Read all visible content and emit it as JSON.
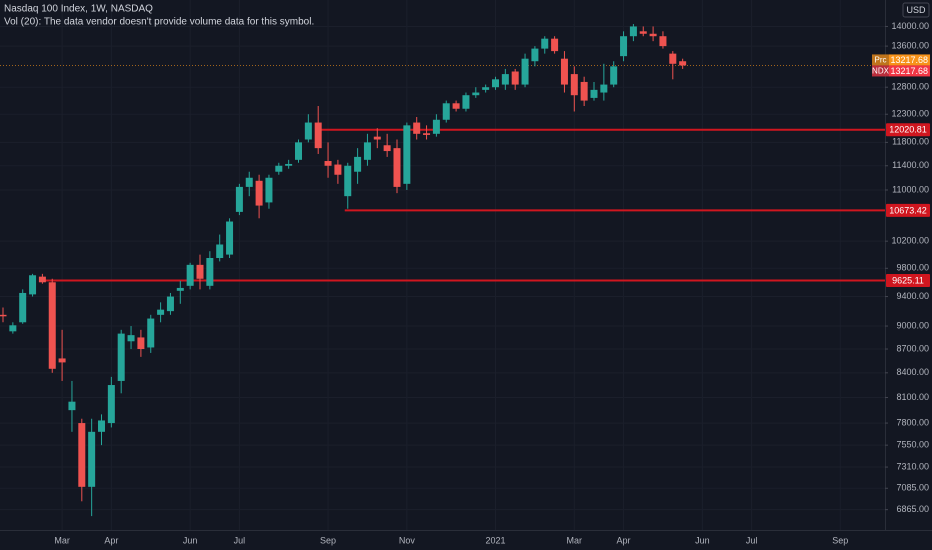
{
  "chart_data": {
    "type": "candlestick",
    "title": "Nasdaq 100 Index, 1W, NASDAQ",
    "subtitle": "Vol (20): The data vendor doesn't provide volume data for this symbol.",
    "currency": "USD",
    "log_scale": true,
    "grid": true,
    "up_color": "#26a69a",
    "down_color": "#ef5350",
    "level_color": "#d0161f",
    "categories": [
      null,
      null,
      null,
      null,
      null,
      null,
      "Mar",
      null,
      null,
      null,
      null,
      "Apr",
      null,
      null,
      null,
      null,
      null,
      null,
      null,
      "Jun",
      null,
      null,
      null,
      null,
      "Jul",
      null,
      null,
      null,
      null,
      null,
      null,
      null,
      null,
      "Sep",
      null,
      null,
      null,
      null,
      null,
      null,
      null,
      "Nov",
      null,
      null,
      null,
      null,
      null,
      null,
      null,
      null,
      "2021",
      null,
      null,
      null,
      null,
      null,
      null,
      null,
      "Mar",
      null,
      null,
      null,
      null,
      "Apr",
      null,
      null,
      null,
      null,
      null,
      null,
      null,
      "Jun",
      null,
      null,
      null,
      null,
      "Jul",
      null,
      null,
      null,
      null,
      null,
      null,
      null,
      null,
      "Sep"
    ],
    "open": [
      9150,
      8930,
      9050,
      9430,
      9680,
      9600,
      8580,
      7950,
      7800,
      7100,
      7700,
      7800,
      8300,
      8800,
      8850,
      8720,
      9150,
      9200,
      9480,
      9550,
      9850,
      9550,
      9950,
      10000,
      10650,
      11050,
      11150,
      10800,
      11300,
      11400,
      11500,
      11850,
      12150,
      11480,
      11420,
      10900,
      11300,
      11500,
      11900,
      11750,
      11700,
      11100,
      12150,
      11960,
      11950,
      12200,
      12500,
      12400,
      12650,
      12750,
      12800,
      12850,
      13100,
      12850,
      13300,
      13550,
      13750,
      13350,
      13050,
      12900,
      12600,
      12700,
      12850,
      13400,
      13800,
      13900,
      13850,
      13800,
      13450,
      13300,
      null,
      null,
      null,
      null,
      null,
      null,
      null,
      null,
      null,
      null,
      null,
      null,
      null,
      null,
      null,
      null
    ],
    "high": [
      9250,
      9050,
      9500,
      9720,
      9720,
      9650,
      8950,
      8300,
      7850,
      7850,
      7900,
      8350,
      8950,
      9000,
      8950,
      9150,
      9320,
      9450,
      9620,
      9880,
      10000,
      10050,
      10300,
      10550,
      11100,
      11300,
      11250,
      11250,
      11450,
      11500,
      11850,
      12300,
      12450,
      11800,
      11500,
      11450,
      11700,
      11950,
      12050,
      11950,
      11850,
      12150,
      12250,
      12100,
      12300,
      12550,
      12550,
      12700,
      12800,
      12850,
      13000,
      13150,
      13150,
      13450,
      13600,
      13800,
      13800,
      13500,
      13200,
      13000,
      12900,
      13250,
      13300,
      13900,
      14050,
      14000,
      14000,
      13900,
      13500,
      13350,
      null,
      null,
      null,
      null,
      null,
      null,
      null,
      null,
      null,
      null,
      null,
      null,
      null,
      null,
      null,
      null
    ],
    "low": [
      9050,
      8900,
      9030,
      9400,
      9580,
      8400,
      8300,
      7700,
      6950,
      6800,
      7550,
      7750,
      8150,
      8700,
      8600,
      8650,
      9050,
      9150,
      9300,
      9500,
      9500,
      9500,
      9900,
      9950,
      10600,
      10900,
      10550,
      10700,
      11250,
      11350,
      11450,
      11800,
      11600,
      11200,
      11100,
      10700,
      11100,
      11400,
      11700,
      11550,
      10950,
      11000,
      11850,
      11850,
      11900,
      12150,
      12350,
      12350,
      12600,
      12700,
      12750,
      12750,
      12750,
      12800,
      13200,
      13450,
      13450,
      12700,
      12350,
      12450,
      12550,
      12550,
      12800,
      13300,
      13700,
      13800,
      13700,
      13550,
      12950,
      13150,
      null,
      null,
      null,
      null,
      null,
      null,
      null,
      null,
      null,
      null,
      null,
      null,
      null,
      null,
      null,
      null
    ],
    "close": [
      9130,
      9010,
      9450,
      9700,
      9600,
      8450,
      8530,
      8050,
      7100,
      7700,
      7830,
      8250,
      8900,
      8880,
      8700,
      9100,
      9220,
      9400,
      9520,
      9850,
      9650,
      9950,
      10150,
      10500,
      11050,
      11200,
      10750,
      11200,
      11400,
      11430,
      11800,
      12150,
      11700,
      11400,
      11250,
      11400,
      11550,
      11800,
      11850,
      11650,
      11050,
      12100,
      11950,
      11930,
      12200,
      12500,
      12400,
      12650,
      12700,
      12800,
      12950,
      13050,
      12850,
      13350,
      13550,
      13750,
      13500,
      12850,
      12650,
      12550,
      12750,
      12850,
      13200,
      13800,
      14000,
      13850,
      13800,
      13600,
      13250,
      13217.68,
      null,
      null,
      null,
      null,
      null,
      null,
      null,
      null,
      null,
      null,
      null,
      null,
      null,
      null,
      null,
      null
    ],
    "levels": [
      12020.81,
      10673.42,
      9625.11
    ],
    "price_labels": [
      {
        "tag": "Prc",
        "value": 13217.68,
        "color": "#f7931a"
      },
      {
        "tag": "NDX",
        "value": 13217.68,
        "color": "#f23645"
      }
    ],
    "ylim": [
      6662,
      14557
    ],
    "yticks": [
      {
        "value": 6865,
        "label": "6865.00"
      },
      {
        "value": 7085,
        "label": "7085.00"
      },
      {
        "value": 7310,
        "label": "7310.00"
      },
      {
        "value": 7550,
        "label": "7550.00"
      },
      {
        "value": 7800,
        "label": "7800.00"
      },
      {
        "value": 8100,
        "label": "8100.00"
      },
      {
        "value": 8400,
        "label": "8400.00"
      },
      {
        "value": 8700,
        "label": "8700.00"
      },
      {
        "value": 9000,
        "label": "9000.00"
      },
      {
        "value": 9400,
        "label": "9400.00"
      },
      {
        "value": 9800,
        "label": "9800.00"
      },
      {
        "value": 10200,
        "label": "10200.00"
      },
      {
        "value": 11000,
        "label": "11000.00"
      },
      {
        "value": 11400,
        "label": "11400.00"
      },
      {
        "value": 11800,
        "label": "11800.00"
      },
      {
        "value": 12300,
        "label": "12300.00"
      },
      {
        "value": 12800,
        "label": "12800.00"
      },
      {
        "value": 13600,
        "label": "13600.00"
      },
      {
        "value": 14000,
        "label": "14000.00"
      }
    ]
  }
}
